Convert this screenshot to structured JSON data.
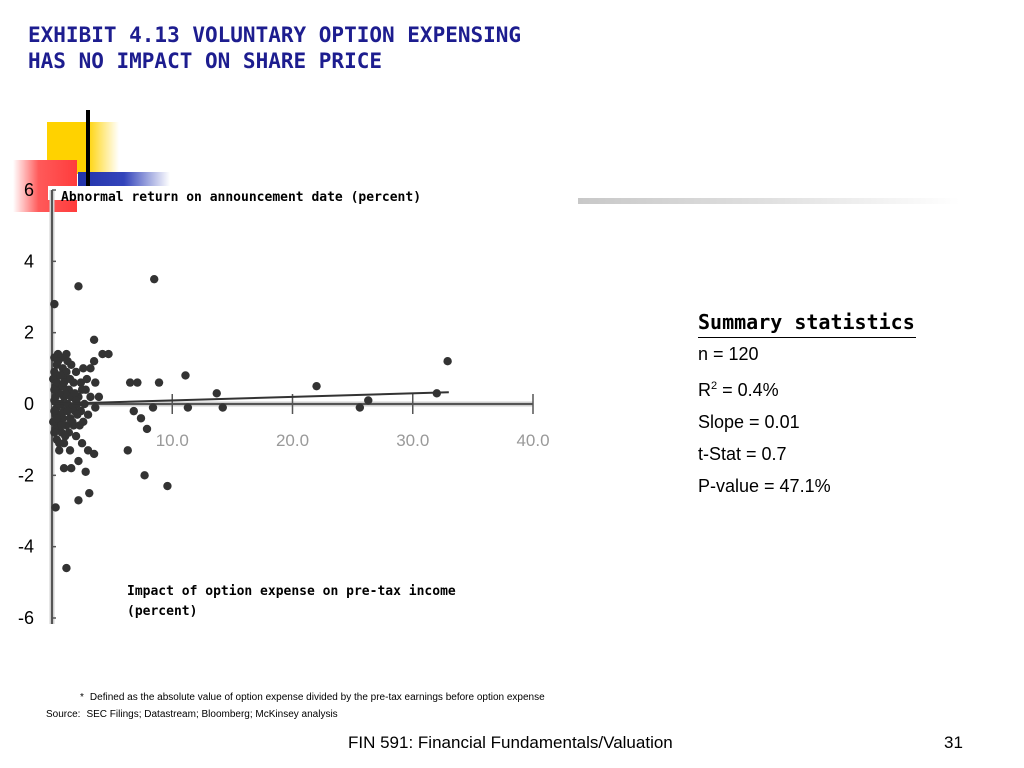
{
  "slide": {
    "title_line1": "EXHIBIT 4.13 VOLUNTARY OPTION EXPENSING",
    "title_line2": "HAS NO IMPACT ON SHARE PRICE",
    "footer_course": "FIN 591: Financial Fundamentals/Valuation",
    "page_number": "31"
  },
  "summary": {
    "title": "Summary statistics",
    "n": "n = 120",
    "r2_prefix": "R",
    "r2_sup": "2",
    "r2_suffix": " = 0.4%",
    "slope": "Slope = 0.01",
    "tstat": "t-Stat = 0.7",
    "pvalue": "P-value = 47.1%"
  },
  "notes": {
    "footnote_marker": "*",
    "footnote_text": "Defined as the absolute value of option expense divided by the pre-tax earnings before option expense",
    "source_label": "Source:",
    "source_text": "SEC Filings; Datastream; Bloomberg; McKinsey analysis"
  },
  "colors": {
    "title": "#1d1d8f",
    "points": "#333333",
    "axis": "#555555"
  },
  "chart_data": {
    "type": "scatter",
    "title": "",
    "xlabel": "Impact of option expense on pre-tax income (percent)",
    "ylabel": "Abnormal return on announcement date (percent)",
    "xlim": [
      0,
      40
    ],
    "ylim": [
      -6,
      6
    ],
    "x_ticks": [
      10,
      20,
      30,
      40
    ],
    "x_tick_labels": [
      "10.0",
      "20.0",
      "30.0",
      "40.0"
    ],
    "y_ticks": [
      6,
      4,
      2,
      0,
      -2,
      -4,
      -6
    ],
    "y_tick_labels": [
      "6",
      "4",
      "2",
      "0",
      "-2",
      "-4",
      "-6"
    ],
    "grid": false,
    "trendline": {
      "slope": 0.01,
      "intercept": 0.0,
      "x_range": [
        0,
        33
      ]
    },
    "points": [
      [
        8.5,
        3.5
      ],
      [
        2.2,
        3.3
      ],
      [
        0.2,
        2.8
      ],
      [
        3.5,
        1.8
      ],
      [
        4.2,
        1.4
      ],
      [
        4.7,
        1.4
      ],
      [
        3.5,
        1.2
      ],
      [
        3.2,
        1.0
      ],
      [
        1.2,
        1.4
      ],
      [
        0.5,
        1.4
      ],
      [
        0.2,
        1.3
      ],
      [
        0.8,
        1.3
      ],
      [
        1.6,
        1.1
      ],
      [
        2.0,
        0.9
      ],
      [
        2.6,
        1.0
      ],
      [
        0.4,
        1.1
      ],
      [
        0.6,
        0.8
      ],
      [
        1.1,
        0.7
      ],
      [
        1.8,
        0.6
      ],
      [
        2.4,
        0.6
      ],
      [
        3.6,
        0.6
      ],
      [
        0.3,
        0.5
      ],
      [
        0.7,
        0.5
      ],
      [
        1.4,
        0.4
      ],
      [
        2.8,
        0.4
      ],
      [
        0.5,
        0.3
      ],
      [
        1.0,
        0.2
      ],
      [
        1.6,
        0.2
      ],
      [
        2.2,
        0.2
      ],
      [
        3.2,
        0.2
      ],
      [
        3.9,
        0.2
      ],
      [
        0.2,
        0.1
      ],
      [
        0.8,
        0.0
      ],
      [
        1.3,
        0.0
      ],
      [
        2.7,
        0.0
      ],
      [
        3.6,
        -0.1
      ],
      [
        0.4,
        -0.1
      ],
      [
        1.0,
        -0.2
      ],
      [
        1.9,
        -0.2
      ],
      [
        2.4,
        -0.2
      ],
      [
        0.3,
        -0.3
      ],
      [
        0.9,
        -0.4
      ],
      [
        1.5,
        -0.4
      ],
      [
        2.1,
        -0.3
      ],
      [
        3.0,
        -0.3
      ],
      [
        0.5,
        -0.5
      ],
      [
        1.2,
        -0.6
      ],
      [
        1.8,
        -0.6
      ],
      [
        2.6,
        -0.5
      ],
      [
        0.3,
        -0.7
      ],
      [
        0.8,
        -0.8
      ],
      [
        1.4,
        -0.8
      ],
      [
        2.0,
        -0.9
      ],
      [
        0.4,
        -1.0
      ],
      [
        1.0,
        -1.1
      ],
      [
        2.5,
        -1.1
      ],
      [
        3.0,
        -1.3
      ],
      [
        3.5,
        -1.4
      ],
      [
        0.6,
        -1.3
      ],
      [
        1.5,
        -1.3
      ],
      [
        2.2,
        -1.6
      ],
      [
        1.0,
        -1.8
      ],
      [
        1.6,
        -1.8
      ],
      [
        2.8,
        -1.9
      ],
      [
        2.2,
        -2.7
      ],
      [
        3.1,
        -2.5
      ],
      [
        0.3,
        -2.9
      ],
      [
        1.2,
        -4.6
      ],
      [
        6.5,
        0.6
      ],
      [
        7.1,
        0.6
      ],
      [
        8.9,
        0.6
      ],
      [
        11.1,
        0.8
      ],
      [
        13.7,
        0.3
      ],
      [
        6.8,
        -0.2
      ],
      [
        7.4,
        -0.4
      ],
      [
        7.9,
        -0.7
      ],
      [
        6.3,
        -1.3
      ],
      [
        7.7,
        -2.0
      ],
      [
        9.6,
        -2.3
      ],
      [
        8.4,
        -0.1
      ],
      [
        11.3,
        -0.1
      ],
      [
        14.2,
        -0.1
      ],
      [
        22.0,
        0.5
      ],
      [
        26.3,
        0.1
      ],
      [
        25.6,
        -0.1
      ],
      [
        32.0,
        0.3
      ],
      [
        32.9,
        1.2
      ],
      [
        0.1,
        0.7
      ],
      [
        0.1,
        -0.5
      ],
      [
        0.2,
        0.9
      ],
      [
        0.6,
        0.0
      ],
      [
        1.7,
        -0.1
      ],
      [
        2.3,
        -0.6
      ],
      [
        2.9,
        0.7
      ],
      [
        0.9,
        1.0
      ],
      [
        1.3,
        1.2
      ],
      [
        0.2,
        -0.8
      ],
      [
        0.7,
        -0.3
      ],
      [
        1.9,
        0.3
      ],
      [
        1.1,
        -0.9
      ],
      [
        0.4,
        0.6
      ],
      [
        0.5,
        1.2
      ],
      [
        0.6,
        -1.1
      ],
      [
        1.2,
        0.9
      ],
      [
        2.1,
        0.0
      ],
      [
        2.5,
        0.4
      ],
      [
        0.3,
        0.2
      ],
      [
        0.9,
        0.5
      ],
      [
        1.5,
        0.7
      ],
      [
        0.2,
        -0.2
      ],
      [
        0.8,
        -0.6
      ],
      [
        1.1,
        0.3
      ],
      [
        1.7,
        -0.5
      ],
      [
        0.4,
        -0.4
      ],
      [
        2.0,
        0.1
      ],
      [
        0.6,
        0.3
      ],
      [
        1.3,
        -0.2
      ],
      [
        0.7,
        0.8
      ],
      [
        0.2,
        0.4
      ],
      [
        1.0,
        0.6
      ]
    ]
  }
}
